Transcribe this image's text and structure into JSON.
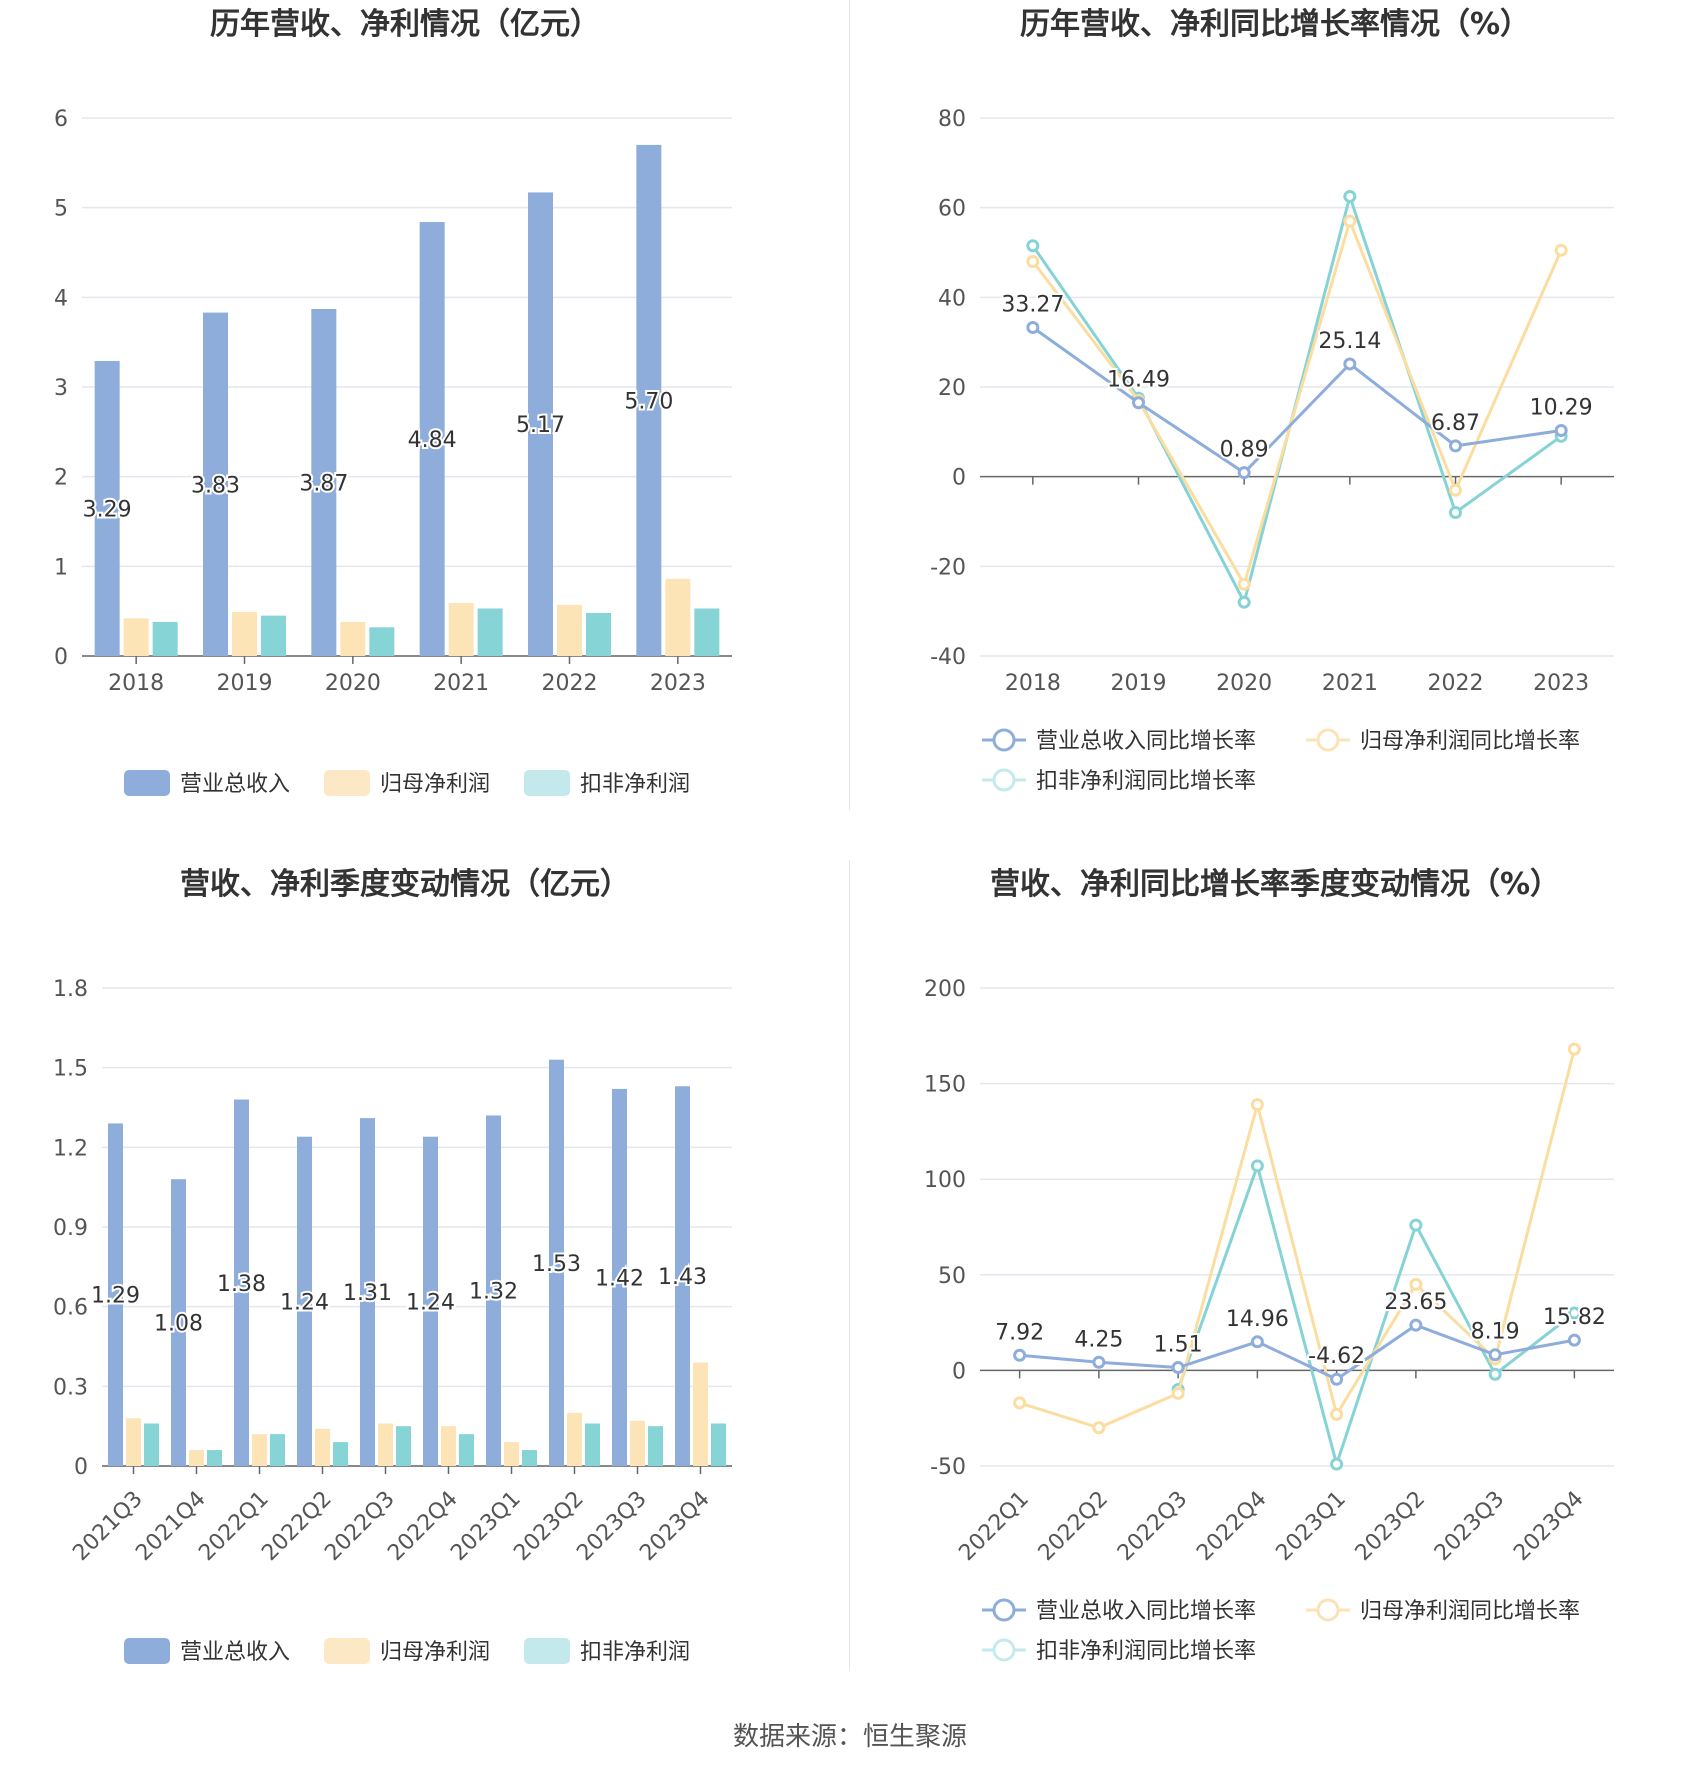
{
  "colors": {
    "revenue": "#8eaddb",
    "net_profit": "#fde4b6",
    "deducted_profit": "#86d4d6",
    "revenue_line": "#8eaddb",
    "net_line": "#fbdda0",
    "deducted_line": "#86d3d6",
    "grid": "#e4e7f0",
    "axis": "#555555"
  },
  "footer": {
    "source": "数据来源：恒生聚源"
  },
  "chart_data": [
    {
      "type": "bar",
      "title": "历年营收、净利情况（亿元）",
      "categories": [
        "2018",
        "2019",
        "2020",
        "2021",
        "2022",
        "2023"
      ],
      "ylim": [
        0,
        6
      ],
      "yticks": [
        "0",
        "1",
        "2",
        "3",
        "4",
        "5",
        "6"
      ],
      "grid": true,
      "legend_position": "bottom",
      "series": [
        {
          "name": "营业总收入",
          "values": [
            3.29,
            3.83,
            3.87,
            4.84,
            5.17,
            5.7
          ],
          "labels": [
            "3.29",
            "3.83",
            "3.87",
            "4.84",
            "5.17",
            "5.70"
          ]
        },
        {
          "name": "归母净利润",
          "values": [
            0.42,
            0.49,
            0.38,
            0.59,
            0.57,
            0.86
          ]
        },
        {
          "name": "扣非净利润",
          "values": [
            0.38,
            0.45,
            0.32,
            0.53,
            0.48,
            0.53
          ]
        }
      ]
    },
    {
      "type": "line",
      "title": "历年营收、净利同比增长率情况（%）",
      "categories": [
        "2018",
        "2019",
        "2020",
        "2021",
        "2022",
        "2023"
      ],
      "ylim": [
        -40,
        80
      ],
      "yticks": [
        "-40",
        "-20",
        "0",
        "20",
        "40",
        "60",
        "80"
      ],
      "grid": true,
      "legend_position": "bottom",
      "series": [
        {
          "name": "营业总收入同比增长率",
          "values": [
            33.27,
            16.49,
            0.89,
            25.14,
            6.87,
            10.29
          ],
          "labels": [
            "33.27",
            "16.49",
            "0.89",
            "25.14",
            "6.87",
            "10.29"
          ]
        },
        {
          "name": "归母净利润同比增长率",
          "values": [
            48,
            17,
            -24,
            57,
            -3,
            50.5
          ]
        },
        {
          "name": "扣非净利润同比增长率",
          "values": [
            51.5,
            17.5,
            -28,
            62.5,
            -8,
            9
          ]
        }
      ]
    },
    {
      "type": "bar",
      "title": "营收、净利季度变动情况（亿元）",
      "categories": [
        "2021Q3",
        "2021Q4",
        "2022Q1",
        "2022Q2",
        "2022Q3",
        "2022Q4",
        "2023Q1",
        "2023Q2",
        "2023Q3",
        "2023Q4"
      ],
      "ylim": [
        0,
        1.8
      ],
      "yticks": [
        "0",
        "0.3",
        "0.6",
        "0.9",
        "1.2",
        "1.5",
        "1.8"
      ],
      "grid": true,
      "legend_position": "bottom",
      "series": [
        {
          "name": "营业总收入",
          "values": [
            1.29,
            1.08,
            1.38,
            1.24,
            1.31,
            1.24,
            1.32,
            1.53,
            1.42,
            1.43
          ],
          "labels": [
            "1.29",
            "1.08",
            "1.38",
            "1.24",
            "1.31",
            "1.24",
            "1.32",
            "1.53",
            "1.42",
            "1.43"
          ]
        },
        {
          "name": "归母净利润",
          "values": [
            0.18,
            0.06,
            0.12,
            0.14,
            0.16,
            0.15,
            0.09,
            0.2,
            0.17,
            0.39
          ]
        },
        {
          "name": "扣非净利润",
          "values": [
            0.16,
            0.06,
            0.12,
            0.09,
            0.15,
            0.12,
            0.06,
            0.16,
            0.15,
            0.16
          ]
        }
      ]
    },
    {
      "type": "line",
      "title": "营收、净利同比增长率季度变动情况（%）",
      "categories": [
        "2022Q1",
        "2022Q2",
        "2022Q3",
        "2022Q4",
        "2023Q1",
        "2023Q2",
        "2023Q3",
        "2023Q4"
      ],
      "ylim": [
        -50,
        200
      ],
      "yticks": [
        "-50",
        "0",
        "50",
        "100",
        "150",
        "200"
      ],
      "grid": true,
      "legend_position": "bottom",
      "series": [
        {
          "name": "营业总收入同比增长率",
          "values": [
            7.92,
            4.25,
            1.51,
            14.96,
            -4.62,
            23.65,
            8.19,
            15.82
          ],
          "labels": [
            "7.92",
            "4.25",
            "1.51",
            "14.96",
            "-4.62",
            "23.65",
            "8.19",
            "15.82"
          ]
        },
        {
          "name": "归母净利润同比增长率",
          "values": [
            -17,
            -30,
            -12,
            139,
            -23,
            45,
            6,
            168
          ]
        },
        {
          "name": "扣非净利润同比增长率",
          "values": [
            null,
            null,
            -10,
            107,
            -49,
            76,
            -2,
            30
          ]
        }
      ]
    }
  ]
}
